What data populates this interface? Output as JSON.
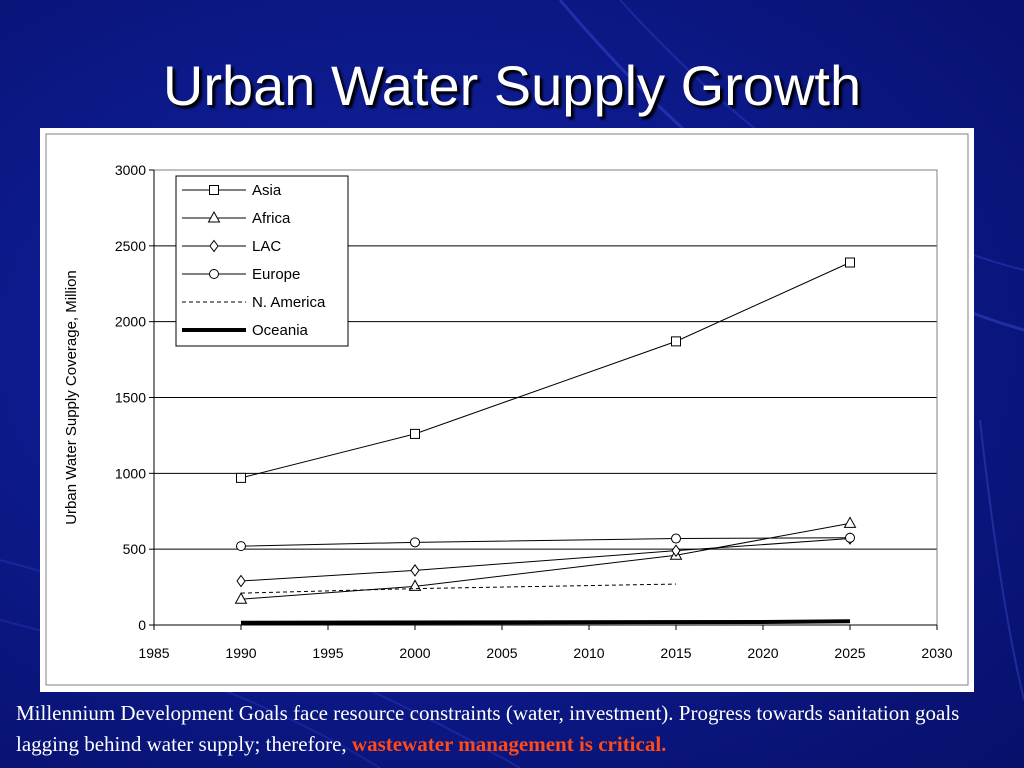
{
  "slide": {
    "title": "Urban Water Supply Growth",
    "caption_text": "Millennium Development Goals face resource constraints (water, investment). Progress towards sanitation goals lagging behind water supply; therefore, ",
    "caption_highlight": "wastewater management is critical.",
    "highlight_color": "#ff4a1a",
    "background_color": "#0d1a8c"
  },
  "chart_data": {
    "type": "line",
    "title": "",
    "xlabel": "",
    "ylabel": "Urban Water Supply Coverage, Million",
    "xlim": [
      1985,
      2030
    ],
    "ylim": [
      0,
      3000
    ],
    "xticks": [
      1985,
      1990,
      1995,
      2000,
      2005,
      2010,
      2015,
      2020,
      2025,
      2030
    ],
    "yticks": [
      0,
      500,
      1000,
      1500,
      2000,
      2500,
      3000
    ],
    "grid": "horizontal",
    "legend_position": "top-left",
    "series": [
      {
        "name": "Asia",
        "marker": "square",
        "dash": "solid",
        "width": 1,
        "points": [
          [
            1990,
            970
          ],
          [
            2000,
            1260
          ],
          [
            2015,
            1870
          ],
          [
            2025,
            2390
          ]
        ]
      },
      {
        "name": "Africa",
        "marker": "triangle",
        "dash": "solid",
        "width": 1,
        "points": [
          [
            1990,
            170
          ],
          [
            2000,
            255
          ],
          [
            2015,
            460
          ],
          [
            2025,
            670
          ]
        ]
      },
      {
        "name": "LAC",
        "marker": "diamond",
        "dash": "solid",
        "width": 1,
        "points": [
          [
            1990,
            290
          ],
          [
            2000,
            360
          ],
          [
            2015,
            490
          ],
          [
            2025,
            570
          ]
        ]
      },
      {
        "name": "Europe",
        "marker": "circle",
        "dash": "solid",
        "width": 1,
        "points": [
          [
            1990,
            520
          ],
          [
            2000,
            545
          ],
          [
            2015,
            570
          ],
          [
            2025,
            575
          ]
        ]
      },
      {
        "name": "N. America",
        "marker": "none",
        "dash": "dashed",
        "width": 1,
        "points": [
          [
            1990,
            210
          ],
          [
            2000,
            240
          ],
          [
            2015,
            270
          ]
        ]
      },
      {
        "name": "Oceania",
        "marker": "none",
        "dash": "solid",
        "width": 4,
        "points": [
          [
            1990,
            15
          ],
          [
            2020,
            20
          ],
          [
            2025,
            25
          ]
        ]
      }
    ]
  }
}
